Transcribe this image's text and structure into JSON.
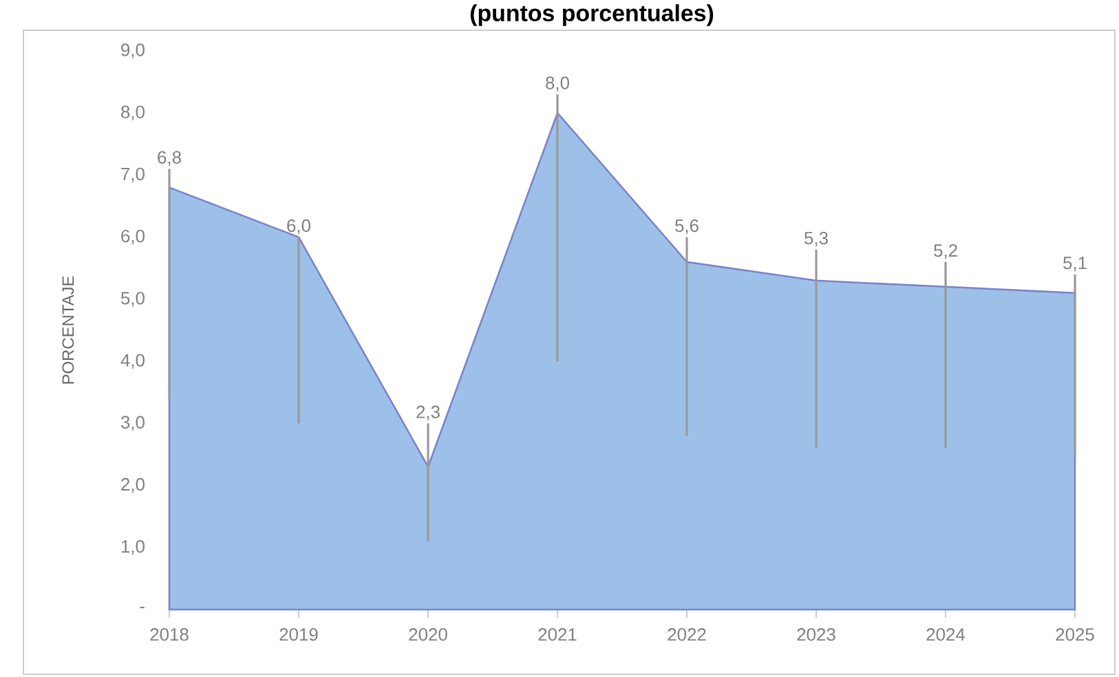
{
  "chart_data": {
    "type": "area",
    "title": "(puntos porcentuales)",
    "ylabel": "PORCENTAJE",
    "categories": [
      "2018",
      "2019",
      "2020",
      "2021",
      "2022",
      "2023",
      "2024",
      "2025"
    ],
    "series": [
      {
        "color": "#9dc0e8",
        "values": [
          6.8,
          6.0,
          2.3,
          8.0,
          5.6,
          5.3,
          5.2,
          5.1
        ],
        "value_labels": [
          "6,8",
          "6,0",
          "2,3",
          "8,0",
          "5,6",
          "5,3",
          "5,2",
          "5,1"
        ],
        "errors": [
          [
            3.4,
            7.1
          ],
          [
            3.0,
            6.0
          ],
          [
            1.1,
            3.0
          ],
          [
            4.0,
            8.3
          ],
          [
            2.8,
            6.0
          ],
          [
            2.6,
            5.8
          ],
          [
            2.6,
            5.6
          ],
          [
            2.5,
            5.4
          ]
        ]
      }
    ],
    "ylim": [
      0,
      9
    ],
    "yticks": [
      {
        "value": 0,
        "label": "-"
      },
      {
        "value": 1,
        "label": "1,0"
      },
      {
        "value": 2,
        "label": "2,0"
      },
      {
        "value": 3,
        "label": "3,0"
      },
      {
        "value": 4,
        "label": "4,0"
      },
      {
        "value": 5,
        "label": "5,0"
      },
      {
        "value": 6,
        "label": "6,0"
      },
      {
        "value": 7,
        "label": "7,0"
      },
      {
        "value": 8,
        "label": "8,0"
      },
      {
        "value": 9,
        "label": "9,0"
      }
    ]
  }
}
